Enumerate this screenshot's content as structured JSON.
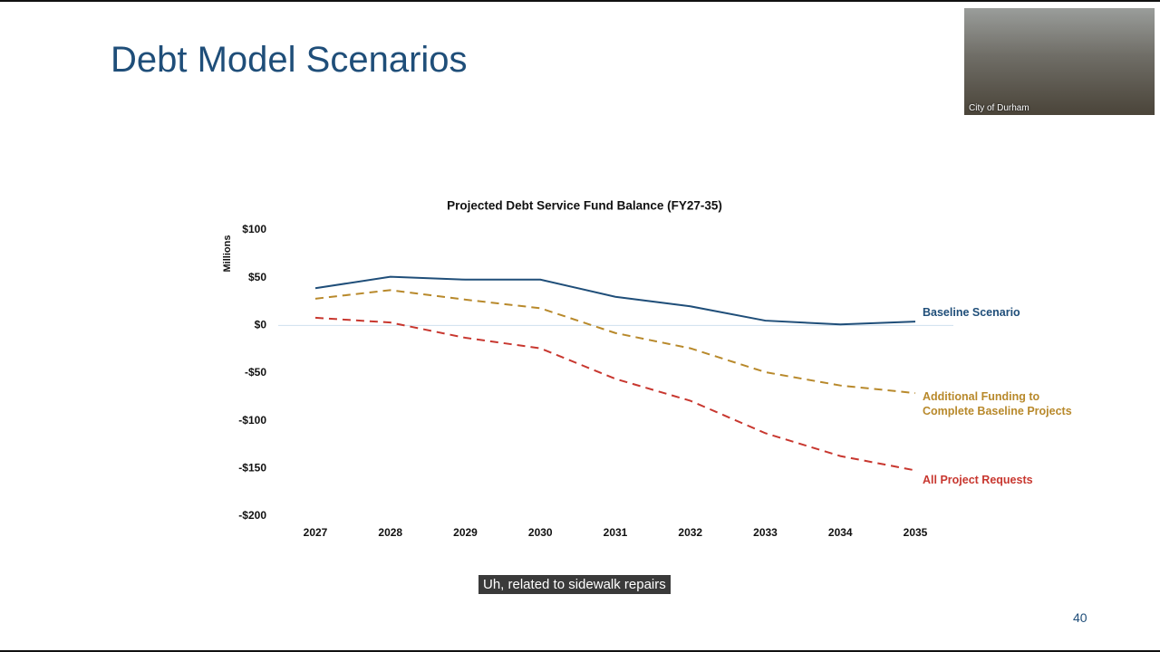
{
  "slide": {
    "title": "Debt Model Scenarios",
    "page_number": "40"
  },
  "video": {
    "label": "City of Durham"
  },
  "caption": "Uh, related to sidewalk repairs",
  "chart_data": {
    "type": "line",
    "title": "Projected Debt Service Fund Balance (FY27-35)",
    "y_label": "Millions",
    "categories": [
      "2027",
      "2028",
      "2029",
      "2030",
      "2031",
      "2032",
      "2033",
      "2034",
      "2035"
    ],
    "ylim": [
      -200,
      100
    ],
    "yticks": [
      {
        "value": 100,
        "label": "$100"
      },
      {
        "value": 50,
        "label": "$50"
      },
      {
        "value": 0,
        "label": "$0"
      },
      {
        "value": -50,
        "label": "-$50"
      },
      {
        "value": -100,
        "label": "-$100"
      },
      {
        "value": -150,
        "label": "-$150"
      },
      {
        "value": -200,
        "label": "-$200"
      }
    ],
    "series": [
      {
        "name": "Baseline Scenario",
        "color": "#1f4e79",
        "dashed": false,
        "values": [
          39,
          51,
          48,
          48,
          30,
          20,
          5,
          1,
          4
        ]
      },
      {
        "name": "Additional Funding to Complete Baseline Projects",
        "color": "#b8892b",
        "dashed": true,
        "values": [
          28,
          37,
          27,
          18,
          -8,
          -24,
          -49,
          -63,
          -71
        ]
      },
      {
        "name": "All Project Requests",
        "color": "#c8372f",
        "dashed": true,
        "values": [
          8,
          3,
          -13,
          -24,
          -56,
          -79,
          -113,
          -137,
          -152
        ]
      }
    ]
  }
}
